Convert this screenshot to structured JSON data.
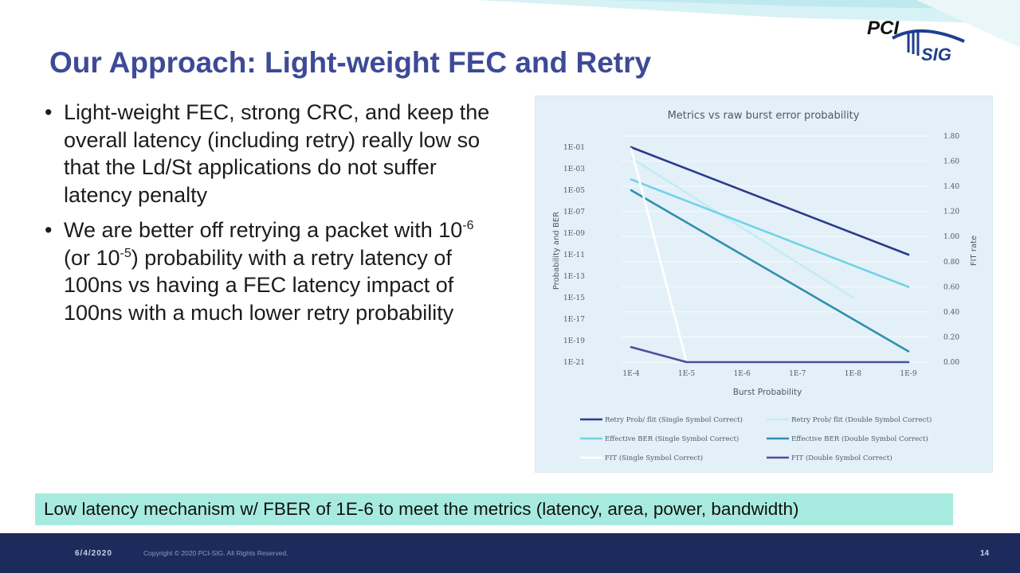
{
  "slide": {
    "title": "Our Approach: Light-weight FEC and Retry",
    "bullets": [
      {
        "text": "Light-weight FEC, strong CRC, and keep the overall latency (including retry) really low so that the Ld/St applications do not suffer latency penalty"
      },
      {
        "part1": "We are better off retrying a packet with 10",
        "sup1": "-6",
        "part2": " (or 10",
        "sup2": "-5",
        "part3": ") probability with a retry latency of 100ns vs having a FEC latency impact of 100ns with a much lower retry probability"
      }
    ],
    "callout": "Low latency mechanism w/ FBER of 1E-6 to meet the metrics (latency, area, power, bandwidth)"
  },
  "logo": {
    "top_text": "PCI",
    "bottom_text": "SIG"
  },
  "footer": {
    "date": "6/4/2020",
    "copyright": "Copyright © 2020 PCI-SIG. All Rights Reserved.",
    "page": "14"
  },
  "colors": {
    "title": "#3d4a96",
    "callout_bg": "#a7ebe0",
    "footer_bg": "#1d2a5c",
    "chart_bg": "#e4f0f8"
  },
  "chart_data": {
    "type": "line",
    "title": "Metrics vs raw burst error probability",
    "xlabel": "Burst Probability",
    "ylabel_left": "Probability and BER",
    "ylabel_right": "FIT rate",
    "x": [
      "1E-4",
      "1E-5",
      "1E-6",
      "1E-7",
      "1E-8",
      "1E-9"
    ],
    "y_left_ticks": [
      "1E-01",
      "1E-03",
      "1E-05",
      "1E-07",
      "1E-09",
      "1E-11",
      "1E-13",
      "1E-15",
      "1E-17",
      "1E-19",
      "1E-21"
    ],
    "y_left_exponent_range": [
      -21,
      -1
    ],
    "y_right_ticks": [
      "0.00",
      "0.20",
      "0.40",
      "0.60",
      "0.80",
      "1.00",
      "1.20",
      "1.40",
      "1.60",
      "1.80"
    ],
    "y_right_range": [
      0,
      1.8
    ],
    "grid": true,
    "legend_position": "bottom",
    "series": [
      {
        "name": "Retry Prob/ flit (Single Symbol Correct)",
        "axis": "left",
        "color": "#2b3a8c",
        "x": [
          "1E-4",
          "1E-9"
        ],
        "y": [
          "1E-1",
          "1E-11"
        ]
      },
      {
        "name": "Retry Prob/ flit (Double Symbol Correct)",
        "axis": "left",
        "color": "#c3ecf3",
        "x": [
          "1E-4",
          "1E-8"
        ],
        "y": [
          "1E-2",
          "1E-15"
        ]
      },
      {
        "name": "Effective BER (Single Symbol Correct)",
        "axis": "left",
        "color": "#6fd3e6",
        "x": [
          "1E-4",
          "1E-9"
        ],
        "y": [
          "1E-4",
          "1E-14"
        ]
      },
      {
        "name": "Effective BER (Double Symbol Correct)",
        "axis": "left",
        "color": "#2f8fae",
        "x": [
          "1E-4",
          "1E-9"
        ],
        "y": [
          "1E-5",
          "1E-20"
        ]
      },
      {
        "name": "FIT (Single Symbol Correct)",
        "axis": "right",
        "color": "#ffffff",
        "x": [
          "1E-4",
          "1E-5",
          "1E-6",
          "1E-7",
          "1E-8",
          "1E-9"
        ],
        "y": [
          1.7,
          0.0,
          0.0,
          0.0,
          0.0,
          0.0
        ]
      },
      {
        "name": "FIT (Double Symbol Correct)",
        "axis": "right",
        "color": "#4a4f9e",
        "x": [
          "1E-4",
          "1E-5",
          "1E-6",
          "1E-7",
          "1E-8",
          "1E-9"
        ],
        "y": [
          0.12,
          0.0,
          0.0,
          0.0,
          0.0,
          0.0
        ]
      }
    ]
  }
}
